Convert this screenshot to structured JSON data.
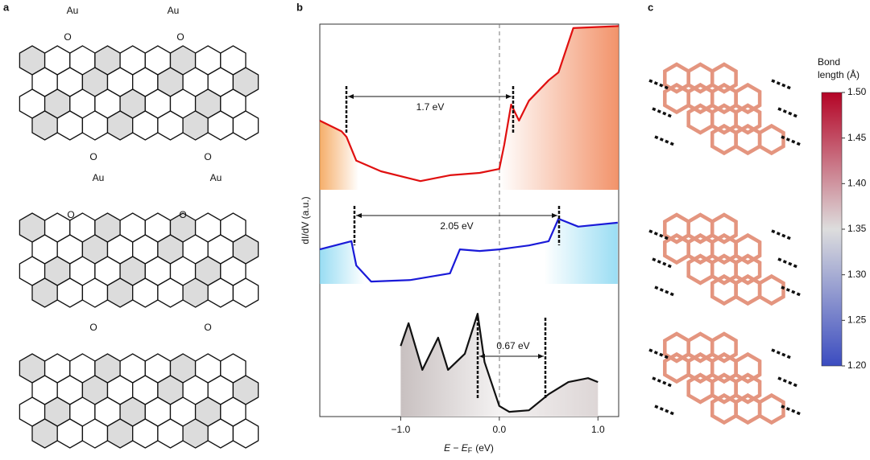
{
  "panels": {
    "a": {
      "label": "a",
      "molecule_1": {
        "au_labels": [
          "Au",
          "Au",
          "Au",
          "Au"
        ],
        "o_labels": [
          "O",
          "O",
          "O",
          "O"
        ]
      },
      "molecule_2": {
        "o_labels": [
          "O",
          "O",
          "O",
          "O"
        ]
      }
    },
    "b": {
      "label": "b"
    },
    "c": {
      "label": "c"
    }
  },
  "chart_data": {
    "type": "line",
    "x_label": "E − E",
    "x_label_sub": "F",
    "x_label_unit": "(eV)",
    "y_label": "dI/dV (a.u.)",
    "xlim": [
      -1.82,
      1.21
    ],
    "xticks": [
      {
        "value": -1,
        "label": "−1.0"
      },
      {
        "value": 0,
        "label": "0.0"
      },
      {
        "value": 1,
        "label": "1.0"
      }
    ],
    "ylim": [
      0,
      10
    ],
    "annotations": [
      "1.7 eV",
      "2.05 eV",
      "0.67 eV"
    ],
    "series": [
      {
        "color": "#e01010",
        "x": [
          -1.82,
          -1.6,
          -1.55,
          -1.45,
          -1.2,
          -0.8,
          -0.5,
          -0.2,
          0.0,
          0.05,
          0.12,
          0.2,
          0.3,
          0.5,
          0.6,
          0.75,
          1.21
        ],
        "values": [
          7.54,
          7.27,
          7.13,
          6.52,
          6.25,
          6.0,
          6.15,
          6.21,
          6.31,
          6.93,
          7.95,
          7.54,
          8.05,
          8.57,
          8.77,
          9.9,
          9.95
        ]
      },
      {
        "color": "#1a1ad8",
        "x": [
          -1.82,
          -1.5,
          -1.45,
          -1.3,
          -0.9,
          -0.5,
          -0.4,
          -0.2,
          0.0,
          0.3,
          0.5,
          0.6,
          0.8,
          1.2
        ],
        "values": [
          4.26,
          4.47,
          3.85,
          3.44,
          3.48,
          3.65,
          4.26,
          4.22,
          4.26,
          4.36,
          4.47,
          5.04,
          4.84,
          4.94
        ]
      },
      {
        "color": "#111111",
        "x": [
          -1.0,
          -0.92,
          -0.78,
          -0.62,
          -0.52,
          -0.35,
          -0.22,
          -0.15,
          0.0,
          0.1,
          0.3,
          0.5,
          0.7,
          0.9,
          1.0
        ],
        "values": [
          1.8,
          2.38,
          1.19,
          2.01,
          1.19,
          1.6,
          2.62,
          1.39,
          0.27,
          0.12,
          0.16,
          0.57,
          0.88,
          0.98,
          0.88
        ]
      }
    ]
  },
  "colorbar": {
    "title_1": "Bond",
    "title_2": "length (Å)",
    "clim": [
      1.2,
      1.5
    ],
    "ticks": [
      {
        "value": 1.5,
        "label": "1.50"
      },
      1.45,
      {
        "value": 1.4,
        "label": "1.40"
      },
      1.35,
      {
        "value": 1.3,
        "label": "1.30"
      },
      1.25,
      {
        "value": 1.2,
        "label": "1.20"
      }
    ]
  }
}
